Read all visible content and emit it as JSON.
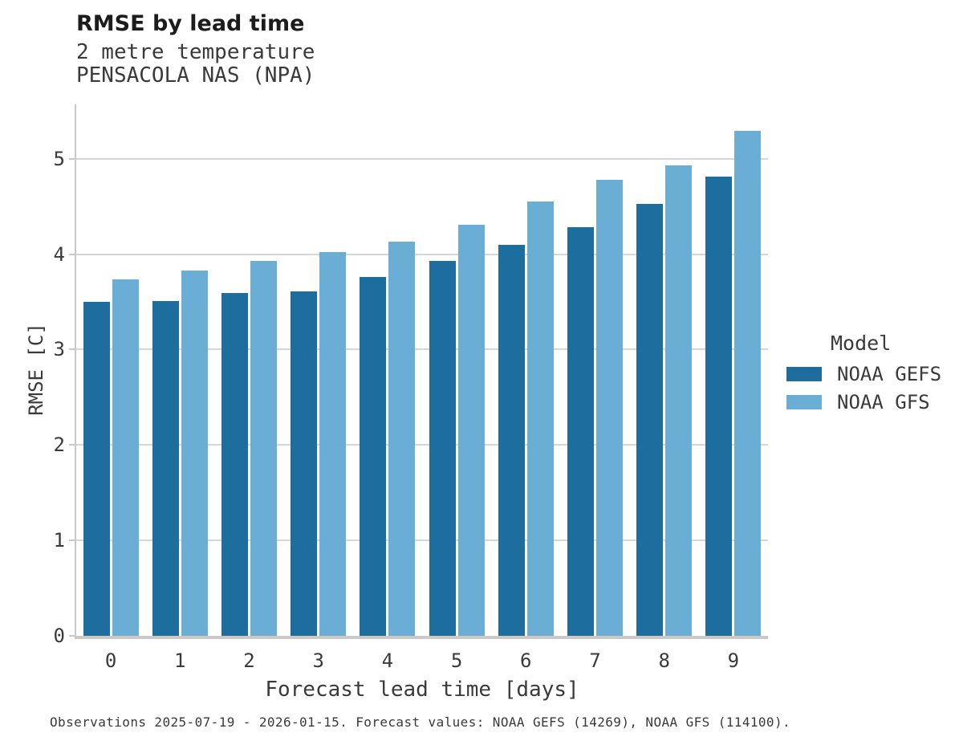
{
  "chart_data": {
    "type": "bar",
    "title": "RMSE by lead time",
    "subtitle": [
      "2 metre temperature",
      "PENSACOLA NAS (NPA)"
    ],
    "categories": [
      "0",
      "1",
      "2",
      "3",
      "4",
      "5",
      "6",
      "7",
      "8",
      "9"
    ],
    "series": [
      {
        "name": "NOAA GEFS",
        "color": "#1d6e9e",
        "values": [
          3.5,
          3.51,
          3.59,
          3.61,
          3.76,
          3.93,
          4.1,
          4.28,
          4.53,
          4.81
        ]
      },
      {
        "name": "NOAA GFS",
        "color": "#6aaed6",
        "values": [
          3.74,
          3.83,
          3.93,
          4.02,
          4.13,
          4.31,
          4.55,
          4.78,
          4.93,
          5.29
        ]
      }
    ],
    "xlabel": "Forecast lead time [days]",
    "ylabel": "RMSE [C]",
    "ylim": [
      0,
      5.57
    ],
    "yticks": [
      0,
      1,
      2,
      3,
      4,
      5
    ],
    "grid": "horizontal",
    "legend_title": "Model",
    "legend_position": "right",
    "caption": "Observations 2025-07-19 - 2026-01-15. Forecast values: NOAA GEFS (14269), NOAA GFS (114100)."
  }
}
